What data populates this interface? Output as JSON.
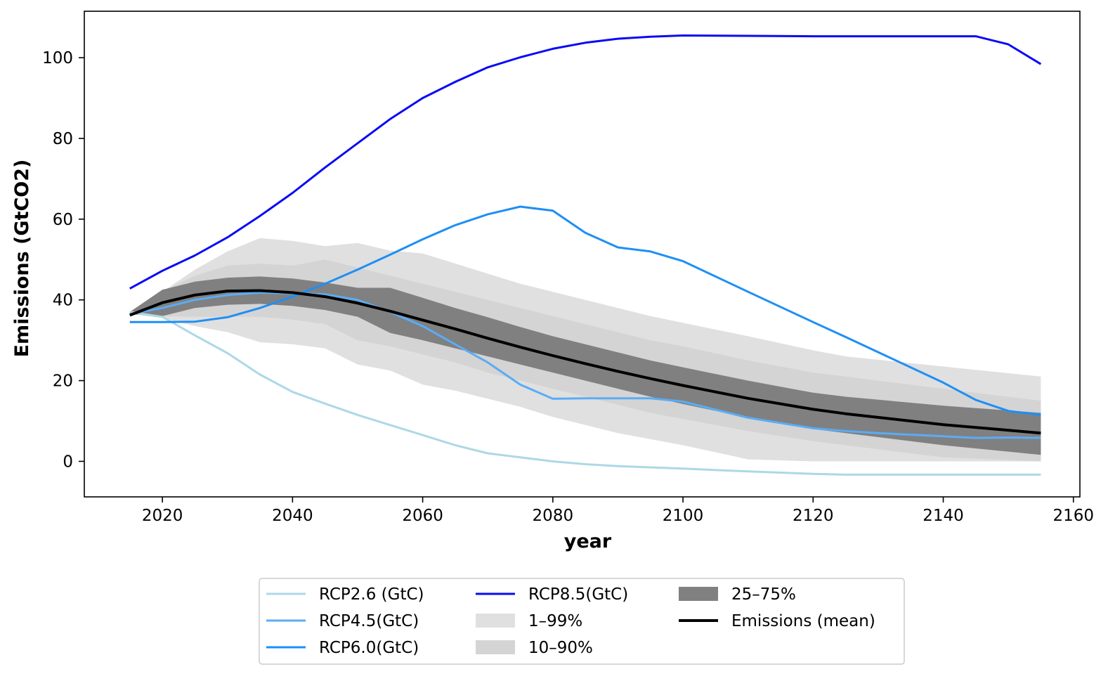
{
  "chart_data": {
    "type": "line",
    "title": "",
    "xlabel": "year",
    "ylabel": "Emissions (GtCO2)",
    "xlim": [
      2008,
      2161
    ],
    "ylim": [
      -8.8,
      111.5
    ],
    "xticks": [
      2020,
      2040,
      2060,
      2080,
      2100,
      2120,
      2140,
      2160
    ],
    "yticks": [
      0,
      20,
      40,
      60,
      80,
      100
    ],
    "grid": false,
    "legend_position": "bottom-center",
    "bands": [
      {
        "name": "1–99%",
        "color": "#e0e0e0",
        "x": [
          2015,
          2020,
          2025,
          2030,
          2035,
          2040,
          2045,
          2050,
          2055,
          2060,
          2065,
          2070,
          2075,
          2080,
          2085,
          2090,
          2095,
          2100,
          2110,
          2120,
          2125,
          2140,
          2155
        ],
        "lower": [
          36.5,
          35.5,
          33.5,
          32,
          29.5,
          29,
          28,
          24,
          22.5,
          19,
          17.5,
          15.5,
          13.5,
          11,
          9,
          7,
          5.5,
          4,
          0.5,
          0,
          0,
          0,
          0
        ],
        "upper": [
          37,
          42,
          47.5,
          52,
          55.3,
          54.6,
          53.3,
          54.1,
          52.2,
          51.5,
          49,
          46.5,
          44,
          42,
          40,
          38,
          36,
          34.3,
          31,
          27.5,
          26,
          23.5,
          21
        ]
      },
      {
        "name": "10–90%",
        "color": "#d4d4d4",
        "x": [
          2015,
          2020,
          2025,
          2030,
          2035,
          2040,
          2045,
          2050,
          2055,
          2060,
          2065,
          2070,
          2075,
          2080,
          2085,
          2090,
          2095,
          2100,
          2110,
          2120,
          2125,
          2140,
          2155
        ],
        "lower": [
          36.5,
          36,
          35.8,
          35.8,
          35.8,
          35.1,
          34,
          30,
          28.5,
          26.5,
          24.5,
          22,
          20,
          18,
          16,
          14,
          12,
          10.5,
          7.5,
          5,
          4,
          1,
          0
        ],
        "upper": [
          37,
          42,
          46,
          48.5,
          49,
          48.5,
          50,
          48,
          46,
          44,
          42,
          40,
          38,
          36,
          34,
          32,
          30,
          28.5,
          25,
          22,
          21,
          18,
          15
        ]
      },
      {
        "name": "25–75%",
        "color": "#808080",
        "x": [
          2015,
          2020,
          2025,
          2030,
          2035,
          2040,
          2045,
          2050,
          2055,
          2060,
          2065,
          2070,
          2075,
          2080,
          2085,
          2090,
          2095,
          2100,
          2110,
          2120,
          2125,
          2140,
          2155
        ],
        "lower": [
          36.5,
          36,
          38,
          38.8,
          39,
          38.5,
          37.5,
          35.8,
          31.8,
          30,
          28,
          26,
          24,
          22,
          20,
          18,
          16,
          14.2,
          10.8,
          8,
          7,
          4,
          1.6
        ],
        "upper": [
          37,
          42.5,
          44.5,
          45.5,
          45.8,
          45.3,
          44.3,
          43,
          43,
          40.5,
          38,
          35.7,
          33.3,
          31,
          29,
          27,
          25,
          23.3,
          20,
          17,
          16,
          13.8,
          12
        ]
      }
    ],
    "series": [
      {
        "name": "RCP2.6 (GtC)",
        "color": "#add8e6",
        "x": [
          2015,
          2020,
          2025,
          2030,
          2035,
          2040,
          2045,
          2050,
          2055,
          2060,
          2065,
          2070,
          2075,
          2080,
          2085,
          2090,
          2100,
          2110,
          2120,
          2125,
          2140,
          2155
        ],
        "values": [
          37,
          35.8,
          31.2,
          26.8,
          21.5,
          17.2,
          14.3,
          11.5,
          9,
          6.5,
          4,
          2,
          1,
          0,
          -0.7,
          -1.2,
          -1.8,
          -2.5,
          -3.1,
          -3.3,
          -3.3,
          -3.3
        ]
      },
      {
        "name": "RCP4.5(GtC)",
        "color": "#5aacf5",
        "x": [
          2015,
          2020,
          2025,
          2030,
          2035,
          2040,
          2045,
          2050,
          2055,
          2060,
          2065,
          2070,
          2075,
          2080,
          2085,
          2090,
          2095,
          2100,
          2110,
          2120,
          2125,
          2130,
          2140,
          2145,
          2150,
          2155
        ],
        "values": [
          36.5,
          38,
          40,
          41.2,
          41.8,
          41.6,
          41.4,
          40,
          37,
          33.5,
          29,
          24.5,
          19,
          15.5,
          15.6,
          15.6,
          15.6,
          14.8,
          10.8,
          8.2,
          7.5,
          7,
          6.2,
          5.8,
          5.9,
          5.8
        ]
      },
      {
        "name": "RCP6.0(GtC)",
        "color": "#1e8ff5",
        "x": [
          2015,
          2020,
          2025,
          2030,
          2035,
          2040,
          2045,
          2050,
          2055,
          2060,
          2065,
          2070,
          2075,
          2080,
          2085,
          2090,
          2095,
          2100,
          2110,
          2120,
          2125,
          2140,
          2145,
          2150,
          2155
        ],
        "values": [
          34.5,
          34.5,
          34.6,
          35.7,
          38,
          40.8,
          44,
          47.5,
          51.2,
          55,
          58.5,
          61.2,
          63.1,
          62.1,
          56.6,
          53,
          52,
          49.6,
          42,
          34.5,
          30.8,
          19.5,
          15.2,
          12.5,
          11.5
        ]
      },
      {
        "name": "RCP8.5(GtC)",
        "color": "#0a0af5",
        "x": [
          2015,
          2020,
          2025,
          2030,
          2035,
          2040,
          2045,
          2050,
          2055,
          2060,
          2065,
          2070,
          2075,
          2080,
          2085,
          2090,
          2095,
          2100,
          2110,
          2120,
          2125,
          2140,
          2145,
          2150,
          2155
        ],
        "values": [
          42.8,
          47.2,
          51,
          55.5,
          60.8,
          66.5,
          72.8,
          78.8,
          84.8,
          90,
          94,
          97.6,
          100.1,
          102.2,
          103.7,
          104.7,
          105.2,
          105.5,
          105.4,
          105.3,
          105.3,
          105.3,
          105.3,
          103.3,
          98.4
        ]
      },
      {
        "name": "Emissions (mean)",
        "color": "#000000",
        "x": [
          2015,
          2020,
          2025,
          2030,
          2035,
          2040,
          2045,
          2050,
          2055,
          2060,
          2065,
          2070,
          2075,
          2080,
          2085,
          2090,
          2095,
          2100,
          2110,
          2120,
          2125,
          2140,
          2155
        ],
        "values": [
          36.2,
          39.3,
          41.2,
          42.2,
          42.3,
          41.8,
          40.8,
          39.2,
          37.2,
          35,
          32.8,
          30.5,
          28.3,
          26.2,
          24.2,
          22.3,
          20.5,
          18.8,
          15.6,
          12.9,
          11.8,
          9.1,
          7
        ]
      }
    ],
    "legend": [
      {
        "label": "RCP2.6 (GtC)",
        "kind": "line",
        "color": "#add8e6"
      },
      {
        "label": "RCP4.5(GtC)",
        "kind": "line",
        "color": "#5aacf5"
      },
      {
        "label": "RCP6.0(GtC)",
        "kind": "line",
        "color": "#1e8ff5"
      },
      {
        "label": "RCP8.5(GtC)",
        "kind": "line",
        "color": "#0a0af5"
      },
      {
        "label": "1–99%",
        "kind": "patch",
        "color": "#e0e0e0"
      },
      {
        "label": "10–90%",
        "kind": "patch",
        "color": "#d4d4d4"
      },
      {
        "label": "25–75%",
        "kind": "patch",
        "color": "#808080"
      },
      {
        "label": "Emissions (mean)",
        "kind": "line",
        "color": "#000000"
      }
    ]
  }
}
